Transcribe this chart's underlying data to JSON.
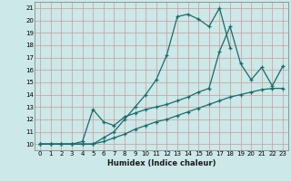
{
  "xlabel": "Humidex (Indice chaleur)",
  "bg_color": "#cce8e8",
  "grid_color": "#aacccc",
  "line_color": "#1a6b6b",
  "xlim": [
    -0.5,
    23.5
  ],
  "ylim": [
    9.5,
    21.5
  ],
  "xticks": [
    0,
    1,
    2,
    3,
    4,
    5,
    6,
    7,
    8,
    9,
    10,
    11,
    12,
    13,
    14,
    15,
    16,
    17,
    18,
    19,
    20,
    21,
    22,
    23
  ],
  "yticks": [
    10,
    11,
    12,
    13,
    14,
    15,
    16,
    17,
    18,
    19,
    20,
    21
  ],
  "line1_x": [
    0,
    1,
    2,
    3,
    4,
    5,
    6,
    7,
    8,
    9,
    10,
    11,
    12,
    13,
    14,
    15,
    16,
    17,
    18
  ],
  "line1_y": [
    10,
    10,
    10,
    10,
    10,
    10,
    10.5,
    11,
    12,
    13,
    14,
    15.2,
    17.2,
    20.3,
    20.5,
    20.1,
    19.5,
    21.0,
    17.8
  ],
  "line2_x": [
    0,
    1,
    2,
    3,
    4,
    5,
    6,
    7,
    8,
    9,
    10,
    11,
    12,
    13,
    14,
    15,
    16,
    17,
    18,
    19,
    20,
    21,
    22,
    23
  ],
  "line2_y": [
    10,
    10,
    10,
    10,
    10.2,
    12.8,
    11.8,
    11.5,
    12.2,
    12.5,
    12.8,
    13.0,
    13.2,
    13.5,
    13.8,
    14.2,
    14.5,
    17.5,
    19.5,
    16.5,
    15.2,
    16.2,
    14.7,
    16.3
  ],
  "line3_x": [
    0,
    1,
    2,
    3,
    4,
    5,
    6,
    7,
    8,
    9,
    10,
    11,
    12,
    13,
    14,
    15,
    16,
    17,
    18,
    19,
    20,
    21,
    22,
    23
  ],
  "line3_y": [
    10,
    10,
    10,
    10,
    10,
    10,
    10.2,
    10.5,
    10.8,
    11.2,
    11.5,
    11.8,
    12.0,
    12.3,
    12.6,
    12.9,
    13.2,
    13.5,
    13.8,
    14.0,
    14.2,
    14.4,
    14.5,
    14.5
  ]
}
